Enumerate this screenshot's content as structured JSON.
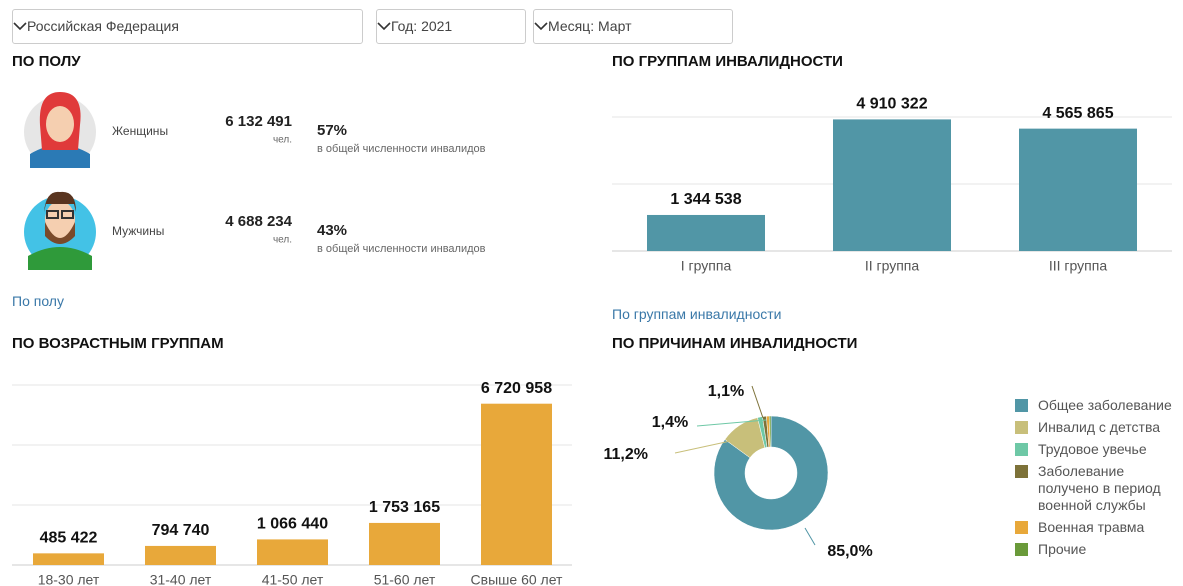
{
  "filters": [
    "Российская  Федерация",
    "Год: 2021",
    "Месяц: Март"
  ],
  "gender": {
    "title": "ПО ПОЛУ",
    "rows": [
      {
        "label": "Женщины",
        "count": "6 132 491",
        "unit": "чел.",
        "percent": "57%",
        "note": "в общей численности инвалидов"
      },
      {
        "label": "Мужчины",
        "count": "4 688 234",
        "unit": "чел.",
        "percent": "43%",
        "note": "в общей численности инвалидов"
      }
    ],
    "link": "По полу"
  },
  "disability_link": "По группам инвалидности",
  "chart_data": [
    {
      "type": "bar",
      "title": "ПО ГРУППАМ ИНВАЛИДНОСТИ",
      "categories": [
        "I группа",
        "II группа",
        "III группа"
      ],
      "values": [
        1344538,
        4910322,
        4565865
      ],
      "value_labels": [
        "1 344 538",
        "4 910 322",
        "4 565 865"
      ],
      "color": "#5196a6",
      "ylim": [
        0,
        5000000
      ],
      "yticks": [
        0,
        2500000,
        5000000
      ],
      "grid": true
    },
    {
      "type": "bar",
      "title": "ПО ВОЗРАСТНЫМ ГРУППАМ",
      "categories": [
        "18-30 лет",
        "31-40 лет",
        "41-50 лет",
        "51-60 лет",
        "Свыше 60 лет"
      ],
      "values": [
        485422,
        794740,
        1066440,
        1753165,
        6720958
      ],
      "value_labels": [
        "485 422",
        "794 740",
        "1 066 440",
        "1 753 165",
        "6 720 958"
      ],
      "color": "#e8a83a",
      "ylim": [
        0,
        7500000
      ],
      "yticks": [
        0,
        2500000,
        5000000,
        7500000
      ],
      "grid": true
    },
    {
      "type": "pie",
      "title": "ПО ПРИЧИНАМ ИНВАЛИДНОСТИ",
      "categories": [
        "Общее заболевание",
        "Инвалид с детства",
        "Трудовое увечье",
        "Заболевание получено в период военной службы",
        "Военная травма",
        "Прочие"
      ],
      "values": [
        85.0,
        11.2,
        1.4,
        1.1,
        0.8,
        0.5
      ],
      "value_labels": [
        "85,0%",
        "11,2%",
        "1,4%",
        "1,1%",
        null,
        null
      ],
      "colors": [
        "#5196a6",
        "#c8bf7a",
        "#6ec8a6",
        "#7d7239",
        "#e8a83a",
        "#6a9a3a"
      ],
      "legend": "right"
    }
  ]
}
